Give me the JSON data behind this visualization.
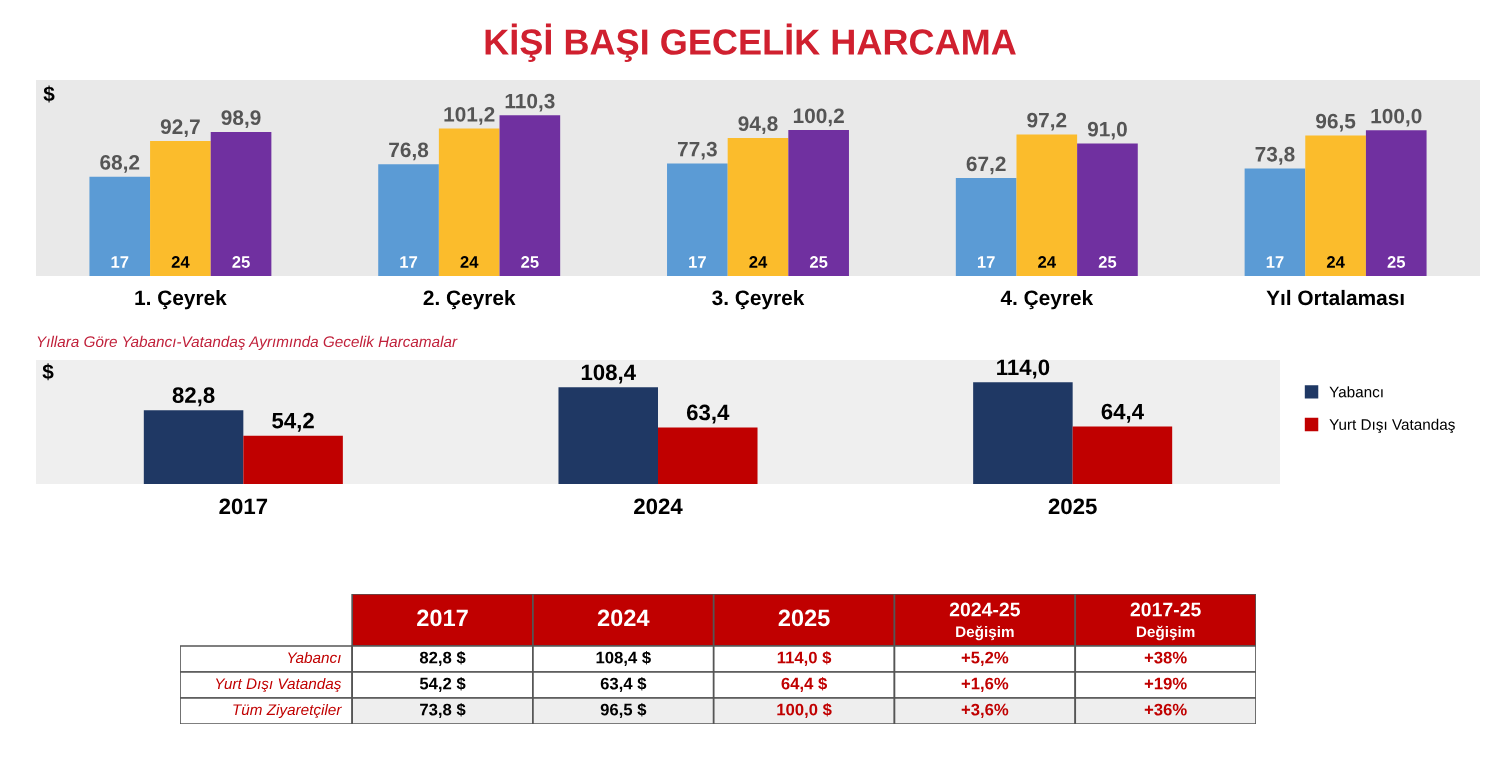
{
  "chart_data": [
    {
      "type": "bar",
      "title": "KİŞİ BAŞI GECELİK HARCAMA",
      "ylabel": "$",
      "categories": [
        "1. Çeyrek",
        "2. Çeyrek",
        "3. Çeyrek",
        "4. Çeyrek",
        "Yıl Ortalaması"
      ],
      "legend": false,
      "series": [
        {
          "name": "17",
          "color": "#5b9bd5",
          "values": [
            68.2,
            76.8,
            77.3,
            67.2,
            73.8
          ],
          "value_labels": [
            "68,2",
            "76,8",
            "77,3",
            "67,2",
            "73,8"
          ]
        },
        {
          "name": "24",
          "color": "#fbbc2c",
          "values": [
            92.7,
            101.2,
            94.8,
            97.2,
            96.5
          ],
          "value_labels": [
            "92,7",
            "101,2",
            "94,8",
            "97,2",
            "96,5"
          ]
        },
        {
          "name": "25",
          "color": "#7030a0",
          "values": [
            98.9,
            110.3,
            100.2,
            91.0,
            100.0
          ],
          "value_labels": [
            "98,9",
            "110,3",
            "100,2",
            "91,0",
            "100,0"
          ]
        }
      ]
    },
    {
      "type": "bar",
      "title": "Yıllara Göre Yabancı-Vatandaş Ayrımında Gecelik Harcamalar",
      "ylabel": "$",
      "categories": [
        "2017",
        "2024",
        "2025"
      ],
      "legend": "right",
      "series": [
        {
          "name": "Yabancı",
          "color": "#1f3864",
          "values": [
            82.8,
            108.4,
            114.0
          ],
          "value_labels": [
            "82,8",
            "108,4",
            "114,0"
          ]
        },
        {
          "name": "Yurt Dışı Vatandaş",
          "color": "#c00000",
          "values": [
            54.2,
            63.4,
            64.4
          ],
          "value_labels": [
            "54,2",
            "63,4",
            "64,4"
          ]
        }
      ]
    },
    {
      "type": "other",
      "categories": [
        "2017",
        "2024",
        "2025",
        "2024-25\nDeğişim",
        "2017-25\nDeğişim"
      ],
      "y_categories": [
        "Yabancı",
        "Yurt Dışı Vatandaş",
        "Tüm Ziyaretçiler"
      ],
      "cell_labels": [
        [
          "82,8 $",
          "108,4 $",
          "114,0 $",
          "+5,2%",
          "+38%"
        ],
        [
          "54,2 $",
          "63,4 $",
          "64,4 $",
          "+1,6%",
          "+19%"
        ],
        [
          "73,8 $",
          "96,5 $",
          "100,0 $",
          "+3,6%",
          "+36%"
        ]
      ]
    }
  ]
}
